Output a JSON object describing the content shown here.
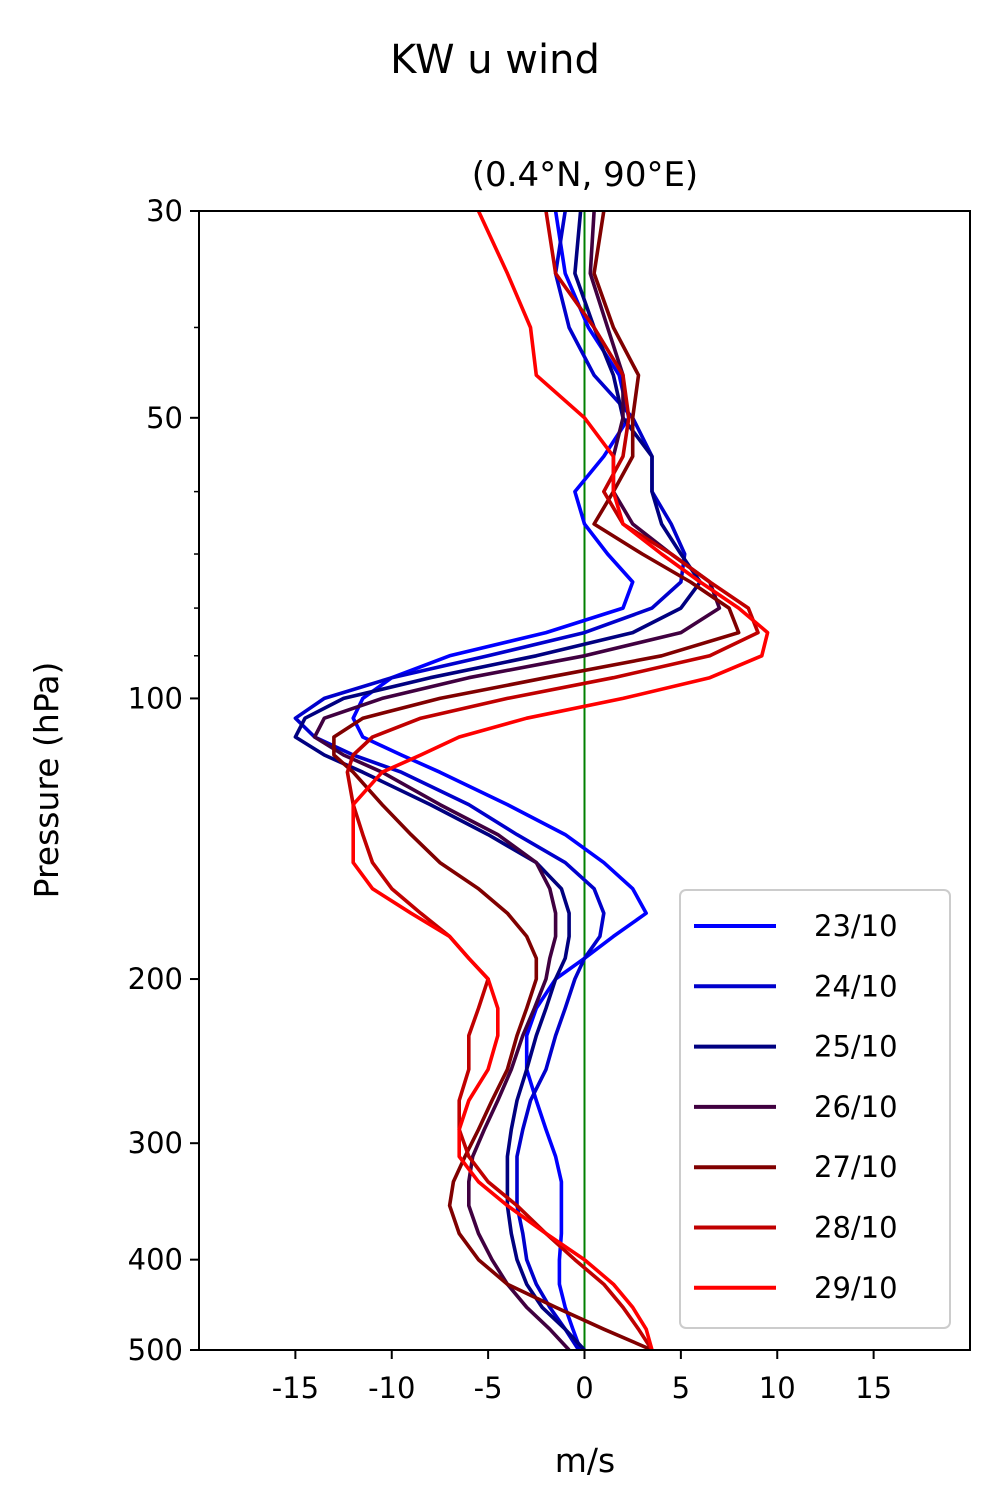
{
  "chart_data": {
    "type": "line",
    "title": "KW u wind",
    "subtitle": "(0.4°N, 90°E)",
    "xlabel": "m/s",
    "ylabel": "Pressure (hPa)",
    "xlim": [
      -20,
      20
    ],
    "ylim": [
      500,
      30
    ],
    "yscale": "log",
    "xticks": [
      -15,
      -10,
      -5,
      0,
      5,
      10,
      15
    ],
    "xtick_labels": [
      "-15",
      "-10",
      "-5",
      "0",
      "5",
      "10",
      "15"
    ],
    "yticks": [
      30,
      50,
      100,
      200,
      300,
      400,
      500
    ],
    "ytick_labels": [
      "30",
      "50",
      "100",
      "200",
      "300",
      "400",
      "500"
    ],
    "reference_line": {
      "x": 0,
      "color": "#008000"
    },
    "legend": {
      "position": "lower-right"
    },
    "grid": false,
    "pressure": [
      30,
      35,
      40,
      45,
      50,
      55,
      60,
      65,
      70,
      75,
      80,
      85,
      90,
      95,
      100,
      105,
      110,
      115,
      120,
      130,
      140,
      150,
      160,
      170,
      180,
      190,
      200,
      215,
      230,
      250,
      270,
      290,
      310,
      330,
      350,
      375,
      400,
      425,
      450,
      475,
      500
    ],
    "series": [
      {
        "name": "23/10",
        "color": "#0000ff",
        "values": [
          -1.5,
          -1.0,
          0.2,
          1.8,
          2.3,
          1.0,
          -0.5,
          0.0,
          1.2,
          2.5,
          2.0,
          -2.0,
          -7.0,
          -10.0,
          -11.5,
          -12.0,
          -11.5,
          -9.5,
          -7.5,
          -4.0,
          -1.0,
          1.0,
          2.5,
          3.2,
          1.5,
          0.0,
          -1.5,
          -2.5,
          -3.0,
          -3.0,
          -2.5,
          -2.0,
          -1.5,
          -1.2,
          -1.2,
          -1.2,
          -1.3,
          -1.3,
          -1.0,
          -0.6,
          -0.2
        ]
      },
      {
        "name": "24/10",
        "color": "#0000cc",
        "values": [
          -1.0,
          -1.5,
          -0.8,
          0.5,
          2.5,
          3.5,
          3.5,
          4.5,
          5.2,
          5.0,
          3.5,
          0.0,
          -5.0,
          -10.0,
          -13.5,
          -15.0,
          -14.0,
          -12.0,
          -9.5,
          -6.0,
          -3.5,
          -1.0,
          0.5,
          1.0,
          0.8,
          0.0,
          -0.5,
          -1.0,
          -1.5,
          -2.0,
          -2.8,
          -3.2,
          -3.5,
          -3.5,
          -3.5,
          -3.2,
          -3.0,
          -2.5,
          -1.8,
          -1.0,
          -0.3
        ]
      },
      {
        "name": "25/10",
        "color": "#000080",
        "values": [
          -0.2,
          -0.5,
          0.5,
          1.5,
          2.0,
          3.5,
          3.5,
          4.0,
          5.0,
          6.0,
          5.0,
          2.5,
          -2.5,
          -8.0,
          -12.5,
          -14.5,
          -15.0,
          -13.5,
          -11.5,
          -8.0,
          -5.0,
          -2.5,
          -1.2,
          -0.8,
          -0.8,
          -1.0,
          -1.5,
          -2.0,
          -2.5,
          -3.0,
          -3.5,
          -3.8,
          -4.0,
          -4.0,
          -4.0,
          -3.8,
          -3.5,
          -3.0,
          -2.2,
          -1.0,
          0.0
        ]
      },
      {
        "name": "26/10",
        "color": "#400040",
        "values": [
          0.5,
          0.3,
          1.2,
          2.0,
          2.0,
          1.5,
          1.5,
          2.5,
          4.5,
          6.5,
          7.0,
          5.0,
          0.0,
          -6.0,
          -10.5,
          -13.5,
          -14.0,
          -12.5,
          -10.5,
          -7.5,
          -4.5,
          -2.5,
          -1.8,
          -1.5,
          -1.5,
          -1.8,
          -2.0,
          -2.6,
          -3.2,
          -3.8,
          -4.5,
          -5.2,
          -5.8,
          -6.0,
          -6.0,
          -5.5,
          -4.8,
          -4.0,
          -3.0,
          -1.8,
          -0.8
        ]
      },
      {
        "name": "27/10",
        "color": "#800000",
        "values": [
          1.0,
          0.5,
          1.5,
          2.8,
          2.5,
          2.5,
          1.5,
          0.5,
          3.0,
          5.5,
          7.5,
          8.0,
          4.0,
          -2.0,
          -7.5,
          -11.5,
          -13.0,
          -13.0,
          -12.0,
          -10.5,
          -9.0,
          -7.5,
          -5.5,
          -4.0,
          -3.0,
          -2.5,
          -2.5,
          -3.0,
          -3.5,
          -4.0,
          -4.8,
          -5.5,
          -6.2,
          -6.8,
          -7.0,
          -6.5,
          -5.5,
          -4.0,
          -1.5,
          1.0,
          3.5
        ]
      },
      {
        "name": "28/10",
        "color": "#c00000",
        "values": [
          -2.0,
          -1.5,
          0.5,
          2.0,
          2.3,
          2.0,
          1.0,
          2.0,
          4.5,
          6.5,
          8.5,
          9.0,
          6.5,
          1.5,
          -4.0,
          -8.5,
          -11.0,
          -12.0,
          -12.3,
          -12.0,
          -11.5,
          -11.0,
          -10.0,
          -8.5,
          -7.0,
          -6.0,
          -5.0,
          -5.5,
          -6.0,
          -6.0,
          -6.5,
          -6.5,
          -6.0,
          -5.0,
          -3.5,
          -2.0,
          -0.5,
          1.0,
          2.0,
          2.8,
          3.5
        ]
      },
      {
        "name": "29/10",
        "color": "#ff0000",
        "values": [
          -5.5,
          -4.0,
          -2.8,
          -2.5,
          0.0,
          1.5,
          1.5,
          2.0,
          4.0,
          6.0,
          8.0,
          9.5,
          9.2,
          6.5,
          2.0,
          -3.0,
          -6.5,
          -8.5,
          -10.5,
          -12.0,
          -12.0,
          -12.0,
          -11.0,
          -9.0,
          -7.0,
          -6.0,
          -5.0,
          -4.5,
          -4.5,
          -5.0,
          -6.0,
          -6.5,
          -6.5,
          -5.5,
          -4.0,
          -2.0,
          0.0,
          1.5,
          2.5,
          3.2,
          3.5
        ]
      }
    ]
  }
}
